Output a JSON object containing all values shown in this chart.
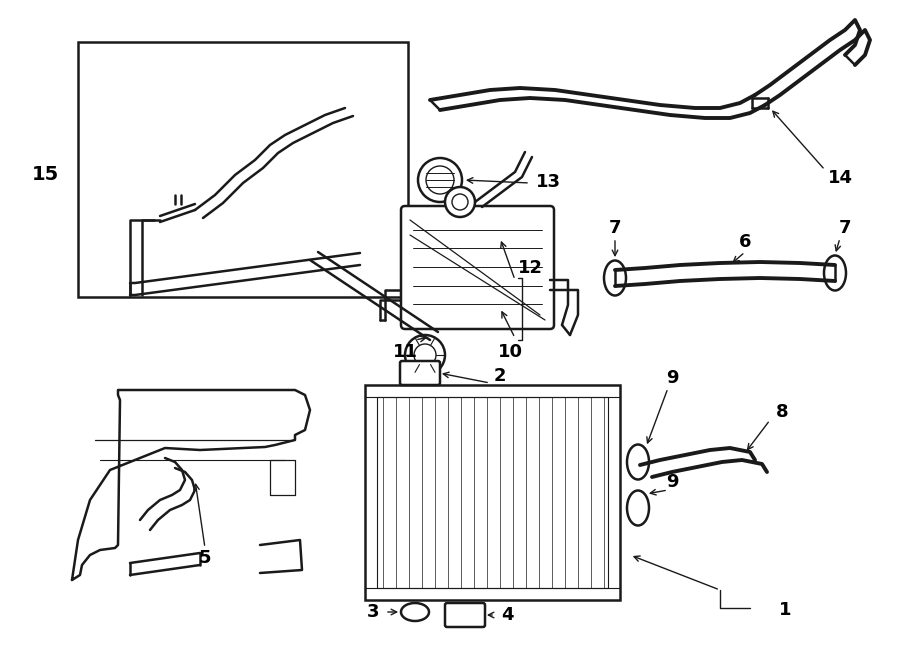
{
  "bg_color": "#ffffff",
  "lc": "#1a1a1a",
  "lw_thick": 2.8,
  "lw_med": 1.8,
  "lw_thin": 1.2,
  "fig_w": 9.0,
  "fig_h": 6.61,
  "dpi": 100
}
